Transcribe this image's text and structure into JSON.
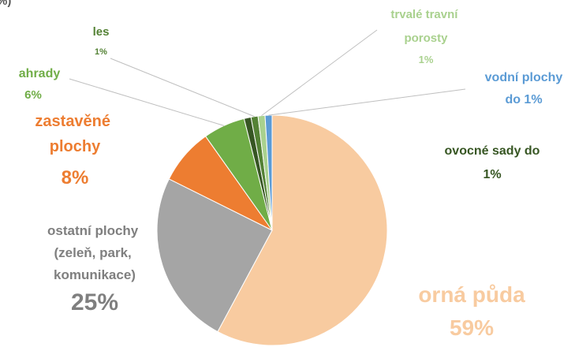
{
  "chart_data": {
    "type": "pie",
    "title": "%)",
    "categories": [
      "orná půda",
      "ostatní plochy (zeleň, park, komunikace)",
      "zastavěné plochy",
      "ahrady",
      "ovocné sady do",
      "les",
      "trvalé travní porosty",
      "vodní plochy"
    ],
    "values": [
      59,
      25,
      8,
      6,
      1,
      1,
      1,
      1
    ],
    "value_labels": [
      "59%",
      "25%",
      "8%",
      "6%",
      "1%",
      "1%",
      "1%",
      "do 1%"
    ],
    "colors": [
      "#f8cba0",
      "#a5a5a5",
      "#ed7d31",
      "#70ad47",
      "#375623",
      "#548235",
      "#a9d18e",
      "#5b9bd5"
    ]
  }
}
